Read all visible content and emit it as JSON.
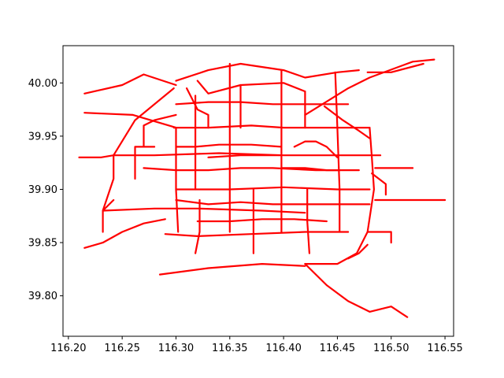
{
  "chart_data": {
    "type": "line",
    "title": "",
    "xlabel": "",
    "ylabel": "",
    "xlim": [
      116.195,
      116.558
    ],
    "ylim": [
      39.762,
      40.035
    ],
    "grid": false,
    "legend": "none",
    "color": "#ff0000",
    "x_ticks": [
      116.2,
      116.25,
      116.3,
      116.35,
      116.4,
      116.45,
      116.5,
      116.55
    ],
    "x_tick_labels": [
      "116.20",
      "116.25",
      "116.30",
      "116.35",
      "116.40",
      "116.45",
      "116.50",
      "116.55"
    ],
    "y_ticks": [
      39.8,
      39.85,
      39.9,
      39.95,
      40.0
    ],
    "y_tick_labels": [
      "39.80",
      "39.85",
      "39.90",
      "39.95",
      "40.00"
    ],
    "series": [
      {
        "values": [
          [
            116.215,
            39.99
          ],
          [
            116.25,
            39.998
          ],
          [
            116.27,
            40.008
          ],
          [
            116.3,
            39.998
          ]
        ]
      },
      {
        "values": [
          [
            116.215,
            39.972
          ],
          [
            116.26,
            39.97
          ],
          [
            116.3,
            39.958
          ]
        ]
      },
      {
        "values": [
          [
            116.3,
            40.002
          ],
          [
            116.33,
            40.012
          ],
          [
            116.36,
            40.018
          ],
          [
            116.4,
            40.012
          ],
          [
            116.42,
            40.005
          ],
          [
            116.45,
            40.01
          ],
          [
            116.47,
            40.012
          ]
        ]
      },
      {
        "values": [
          [
            116.32,
            40.002
          ],
          [
            116.33,
            39.99
          ],
          [
            116.36,
            39.998
          ],
          [
            116.4,
            40.0
          ],
          [
            116.42,
            39.992
          ]
        ]
      },
      {
        "values": [
          [
            116.318,
            39.988
          ],
          [
            116.318,
            39.96
          ],
          [
            116.318,
            39.93
          ],
          [
            116.318,
            39.9
          ]
        ]
      },
      {
        "values": [
          [
            116.298,
            39.958
          ],
          [
            116.33,
            39.958
          ],
          [
            116.37,
            39.96
          ],
          [
            116.4,
            39.958
          ],
          [
            116.43,
            39.958
          ],
          [
            116.46,
            39.958
          ],
          [
            116.48,
            39.958
          ]
        ]
      },
      {
        "values": [
          [
            116.3,
            39.9
          ],
          [
            116.35,
            39.9
          ],
          [
            116.4,
            39.902
          ],
          [
            116.45,
            39.9
          ],
          [
            116.48,
            39.9
          ]
        ]
      },
      {
        "values": [
          [
            116.232,
            39.88
          ],
          [
            116.28,
            39.882
          ],
          [
            116.32,
            39.882
          ],
          [
            116.38,
            39.88
          ],
          [
            116.42,
            39.878
          ]
        ]
      },
      {
        "values": [
          [
            116.29,
            39.858
          ],
          [
            116.32,
            39.856
          ],
          [
            116.37,
            39.858
          ],
          [
            116.42,
            39.86
          ],
          [
            116.46,
            39.86
          ]
        ]
      },
      {
        "values": [
          [
            116.285,
            39.82
          ],
          [
            116.33,
            39.826
          ],
          [
            116.38,
            39.83
          ],
          [
            116.42,
            39.828
          ]
        ]
      },
      {
        "values": [
          [
            116.478,
            39.848
          ],
          [
            116.47,
            39.84
          ],
          [
            116.46,
            39.835
          ]
        ]
      },
      {
        "values": [
          [
            116.42,
            39.83
          ],
          [
            116.44,
            39.81
          ],
          [
            116.46,
            39.795
          ],
          [
            116.48,
            39.785
          ],
          [
            116.5,
            39.79
          ],
          [
            116.515,
            39.78
          ]
        ]
      },
      {
        "values": [
          [
            116.42,
            39.97
          ],
          [
            116.46,
            39.995
          ],
          [
            116.48,
            40.005
          ],
          [
            116.52,
            40.02
          ],
          [
            116.54,
            40.022
          ]
        ]
      },
      {
        "values": [
          [
            116.3,
            39.958
          ],
          [
            116.3,
            39.9
          ],
          [
            116.302,
            39.86
          ]
        ]
      },
      {
        "values": [
          [
            116.35,
            40.018
          ],
          [
            116.35,
            39.96
          ],
          [
            116.35,
            39.9
          ],
          [
            116.35,
            39.86
          ]
        ]
      },
      {
        "values": [
          [
            116.398,
            40.012
          ],
          [
            116.398,
            39.96
          ],
          [
            116.398,
            39.9
          ],
          [
            116.398,
            39.86
          ]
        ]
      },
      {
        "values": [
          [
            116.448,
            40.01
          ],
          [
            116.45,
            39.958
          ],
          [
            116.452,
            39.9
          ],
          [
            116.452,
            39.86
          ]
        ]
      },
      {
        "values": [
          [
            116.242,
            39.932
          ],
          [
            116.28,
            39.932
          ],
          [
            116.34,
            39.934
          ],
          [
            116.4,
            39.932
          ],
          [
            116.44,
            39.932
          ],
          [
            116.49,
            39.932
          ]
        ]
      },
      {
        "values": [
          [
            116.232,
            39.88
          ],
          [
            116.242,
            39.91
          ],
          [
            116.242,
            39.932
          ],
          [
            116.262,
            39.965
          ],
          [
            116.298,
            39.995
          ]
        ]
      },
      {
        "values": [
          [
            116.48,
            39.958
          ],
          [
            116.482,
            39.93
          ],
          [
            116.484,
            39.9
          ],
          [
            116.478,
            39.86
          ],
          [
            116.468,
            39.84
          ],
          [
            116.45,
            39.83
          ],
          [
            116.42,
            39.83
          ]
        ]
      },
      {
        "values": [
          [
            116.215,
            39.845
          ],
          [
            116.232,
            39.85
          ],
          [
            116.25,
            39.86
          ],
          [
            116.27,
            39.868
          ],
          [
            116.29,
            39.872
          ]
        ]
      },
      {
        "values": [
          [
            116.322,
            39.89
          ],
          [
            116.322,
            39.86
          ],
          [
            116.318,
            39.84
          ]
        ]
      },
      {
        "values": [
          [
            116.372,
            39.9
          ],
          [
            116.372,
            39.87
          ],
          [
            116.372,
            39.84
          ]
        ]
      },
      {
        "values": [
          [
            116.422,
            39.9
          ],
          [
            116.422,
            39.87
          ],
          [
            116.424,
            39.84
          ]
        ]
      },
      {
        "values": [
          [
            116.27,
            39.92
          ],
          [
            116.3,
            39.918
          ],
          [
            116.33,
            39.918
          ],
          [
            116.36,
            39.92
          ],
          [
            116.39,
            39.92
          ],
          [
            116.43,
            39.918
          ],
          [
            116.47,
            39.918
          ]
        ]
      },
      {
        "values": [
          [
            116.262,
            39.91
          ],
          [
            116.262,
            39.94
          ],
          [
            116.28,
            39.94
          ]
        ]
      },
      {
        "values": [
          [
            116.3,
            39.98
          ],
          [
            116.33,
            39.982
          ],
          [
            116.36,
            39.982
          ],
          [
            116.39,
            39.98
          ],
          [
            116.43,
            39.98
          ],
          [
            116.46,
            39.98
          ]
        ]
      },
      {
        "values": [
          [
            116.438,
            39.978
          ],
          [
            116.455,
            39.965
          ],
          [
            116.47,
            39.955
          ],
          [
            116.48,
            39.948
          ]
        ]
      },
      {
        "values": [
          [
            116.478,
            40.01
          ],
          [
            116.5,
            40.01
          ],
          [
            116.53,
            40.018
          ]
        ]
      },
      {
        "values": [
          [
            116.485,
            39.92
          ],
          [
            116.505,
            39.92
          ],
          [
            116.52,
            39.92
          ]
        ]
      },
      {
        "values": [
          [
            116.485,
            39.89
          ],
          [
            116.505,
            39.89
          ],
          [
            116.53,
            39.89
          ],
          [
            116.55,
            39.89
          ]
        ]
      },
      {
        "values": [
          [
            116.478,
            39.86
          ],
          [
            116.5,
            39.86
          ],
          [
            116.5,
            39.85
          ]
        ]
      },
      {
        "values": [
          [
            116.482,
            39.915
          ],
          [
            116.495,
            39.905
          ],
          [
            116.495,
            39.895
          ]
        ]
      },
      {
        "values": [
          [
            116.33,
            39.93
          ],
          [
            116.36,
            39.932
          ],
          [
            116.38,
            39.932
          ],
          [
            116.398,
            39.932
          ]
        ]
      },
      {
        "values": [
          [
            116.3,
            39.94
          ],
          [
            116.318,
            39.94
          ],
          [
            116.34,
            39.942
          ],
          [
            116.37,
            39.942
          ],
          [
            116.398,
            39.94
          ]
        ]
      },
      {
        "values": [
          [
            116.27,
            39.94
          ],
          [
            116.27,
            39.96
          ],
          [
            116.28,
            39.965
          ],
          [
            116.3,
            39.97
          ]
        ]
      },
      {
        "values": [
          [
            116.232,
            39.86
          ],
          [
            116.232,
            39.88
          ],
          [
            116.242,
            39.89
          ]
        ]
      },
      {
        "values": [
          [
            116.398,
            39.92
          ],
          [
            116.42,
            39.92
          ],
          [
            116.44,
            39.918
          ],
          [
            116.452,
            39.918
          ]
        ]
      },
      {
        "values": [
          [
            116.41,
            39.94
          ],
          [
            116.42,
            39.945
          ],
          [
            116.43,
            39.945
          ],
          [
            116.44,
            39.94
          ],
          [
            116.45,
            39.93
          ]
        ]
      },
      {
        "values": [
          [
            116.31,
            39.995
          ],
          [
            116.315,
            39.985
          ],
          [
            116.32,
            39.975
          ],
          [
            116.33,
            39.97
          ],
          [
            116.33,
            39.958
          ]
        ]
      },
      {
        "values": [
          [
            116.36,
            39.998
          ],
          [
            116.36,
            39.975
          ],
          [
            116.36,
            39.958
          ]
        ]
      },
      {
        "values": [
          [
            116.42,
            39.992
          ],
          [
            116.42,
            39.975
          ],
          [
            116.42,
            39.958
          ]
        ]
      },
      {
        "values": [
          [
            116.3,
            39.89
          ],
          [
            116.33,
            39.886
          ],
          [
            116.36,
            39.888
          ],
          [
            116.39,
            39.886
          ],
          [
            116.42,
            39.886
          ],
          [
            116.46,
            39.886
          ],
          [
            116.48,
            39.886
          ]
        ]
      },
      {
        "values": [
          [
            116.32,
            39.87
          ],
          [
            116.35,
            39.87
          ],
          [
            116.38,
            39.872
          ],
          [
            116.41,
            39.872
          ],
          [
            116.44,
            39.87
          ]
        ]
      },
      {
        "values": [
          [
            116.21,
            39.93
          ],
          [
            116.23,
            39.93
          ],
          [
            116.242,
            39.932
          ]
        ]
      }
    ]
  }
}
